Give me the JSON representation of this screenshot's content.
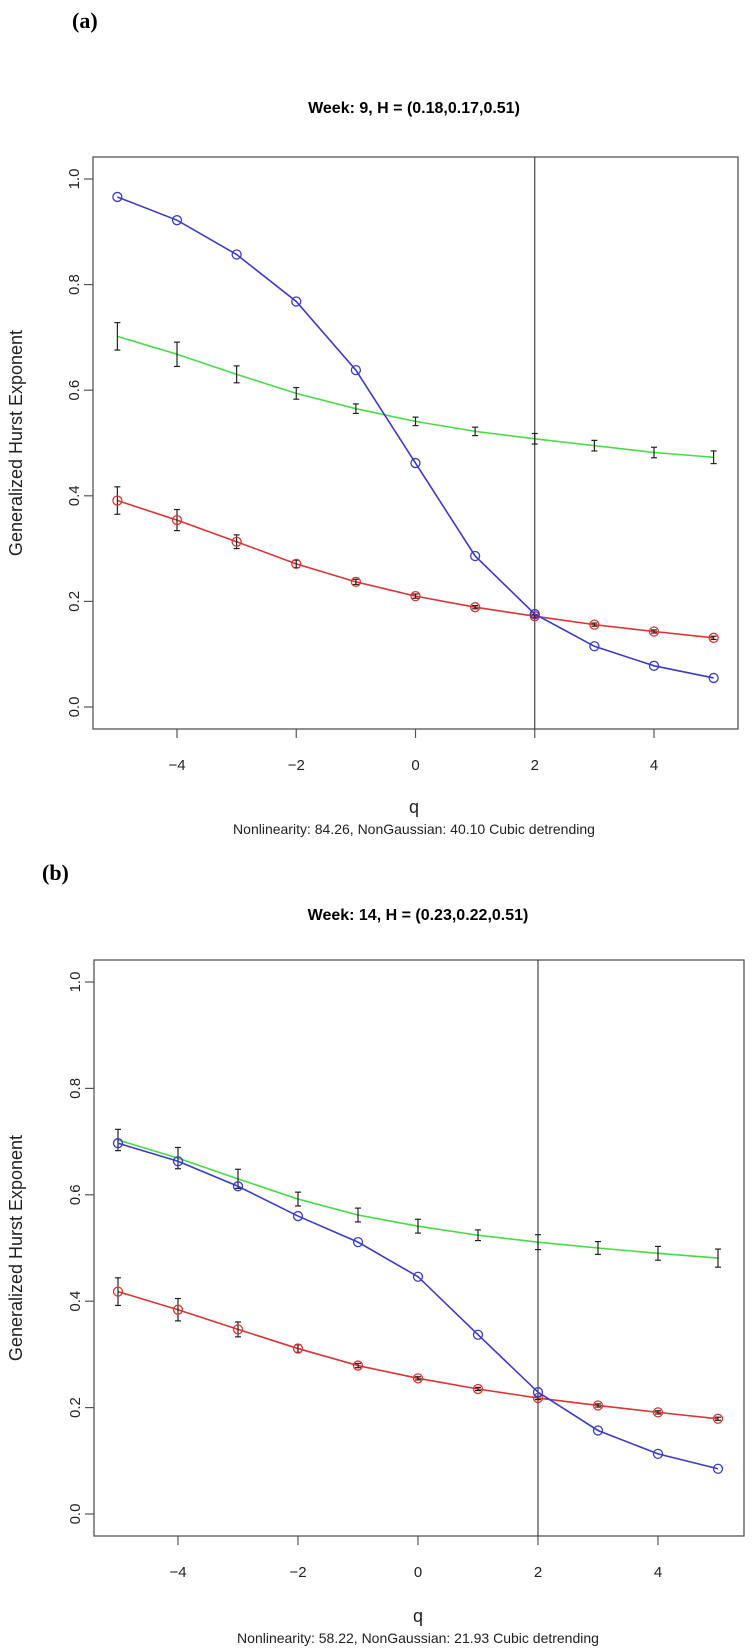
{
  "chart_data": [
    {
      "panel_label": "(a)",
      "type": "line",
      "title": "Week: 9, H = (0.18,0.17,0.51)",
      "xlabel": "q",
      "ylabel": "Generalized Hurst Exponent",
      "subtitle": "Nonlinearity: 84.26, NonGaussian: 40.10 Cubic detrending",
      "xlim": [
        -5.4,
        5.4
      ],
      "ylim": [
        -0.04,
        1.04
      ],
      "xticks": [
        -4,
        -2,
        0,
        2,
        4
      ],
      "yticks": [
        "0.0",
        "0.2",
        "0.4",
        "0.6",
        "0.8",
        "1.0"
      ],
      "vline_x": 2,
      "x": [
        -5,
        -4,
        -3,
        -2,
        -1,
        0,
        1,
        2,
        3,
        4,
        5
      ],
      "series": [
        {
          "color": "#3a3acc",
          "markers": true,
          "values": [
            0.966,
            0.922,
            0.857,
            0.768,
            0.638,
            0.462,
            0.286,
            0.176,
            0.115,
            0.078,
            0.055
          ]
        },
        {
          "color": "#44dd44",
          "markers": false,
          "values": [
            0.702,
            0.668,
            0.63,
            0.594,
            0.565,
            0.541,
            0.522,
            0.508,
            0.495,
            0.482,
            0.473
          ],
          "errors": [
            0.026,
            0.023,
            0.016,
            0.011,
            0.009,
            0.008,
            0.008,
            0.01,
            0.01,
            0.01,
            0.012
          ]
        },
        {
          "color": "#dd3333",
          "markers": true,
          "values": [
            0.391,
            0.354,
            0.313,
            0.271,
            0.237,
            0.21,
            0.189,
            0.172,
            0.156,
            0.143,
            0.131
          ],
          "errors": [
            0.026,
            0.02,
            0.013,
            0.007,
            0.005,
            0.004,
            0.003,
            0.003,
            0.003,
            0.003,
            0.003
          ]
        }
      ]
    },
    {
      "panel_label": "(b)",
      "type": "line",
      "title": "Week: 14, H = (0.23,0.22,0.51)",
      "xlabel": "q",
      "ylabel": "Generalized Hurst Exponent",
      "subtitle": "Nonlinearity: 58.22, NonGaussian: 21.93 Cubic detrending",
      "xlim": [
        -5.4,
        5.4
      ],
      "ylim": [
        -0.04,
        1.04
      ],
      "xticks": [
        -4,
        -2,
        0,
        2,
        4
      ],
      "yticks": [
        "0.0",
        "0.2",
        "0.4",
        "0.6",
        "0.8",
        "1.0"
      ],
      "vline_x": 2,
      "x": [
        -5,
        -4,
        -3,
        -2,
        -1,
        0,
        1,
        2,
        3,
        4,
        5
      ],
      "series": [
        {
          "color": "#3a3acc",
          "markers": true,
          "values": [
            0.697,
            0.663,
            0.616,
            0.56,
            0.511,
            0.446,
            0.337,
            0.229,
            0.157,
            0.113,
            0.085
          ]
        },
        {
          "color": "#44dd44",
          "markers": false,
          "values": [
            0.703,
            0.669,
            0.63,
            0.592,
            0.562,
            0.541,
            0.524,
            0.511,
            0.5,
            0.49,
            0.481
          ],
          "errors": [
            0.02,
            0.02,
            0.018,
            0.013,
            0.013,
            0.013,
            0.01,
            0.014,
            0.012,
            0.013,
            0.017
          ]
        },
        {
          "color": "#dd3333",
          "markers": true,
          "values": [
            0.418,
            0.384,
            0.347,
            0.311,
            0.279,
            0.255,
            0.235,
            0.218,
            0.204,
            0.191,
            0.179
          ],
          "errors": [
            0.026,
            0.021,
            0.014,
            0.007,
            0.004,
            0.003,
            0.003,
            0.003,
            0.003,
            0.003,
            0.003
          ]
        }
      ]
    }
  ]
}
